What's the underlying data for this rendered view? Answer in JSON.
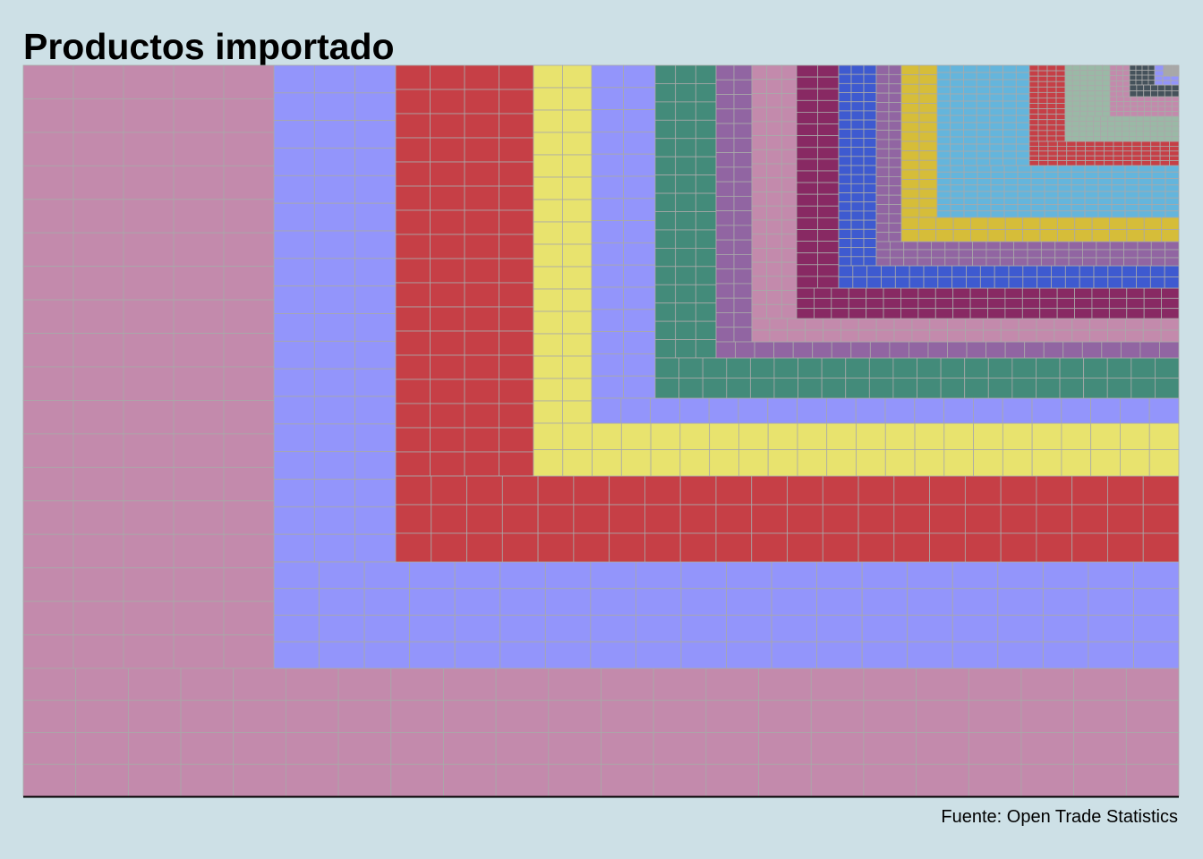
{
  "chart_data": {
    "type": "treemap",
    "title": "Productos importado",
    "caption": "Fuente: Open Trade Statistics",
    "tile_border_color": "#a9a9a9",
    "baseline_color": "#000000",
    "background": "#cde0e6",
    "groups": [
      {
        "color": "#c38aac",
        "tile_cols": 22,
        "tile_rows": 22
      },
      {
        "color": "#9395fb",
        "tile_cols": 20,
        "tile_rows": 22
      },
      {
        "color": "#c63f46",
        "tile_cols": 22,
        "tile_rows": 20
      },
      {
        "color": "#e8e36e",
        "tile_cols": 22,
        "tile_rows": 18
      },
      {
        "color": "#9395fb",
        "tile_cols": 20,
        "tile_rows": 16
      },
      {
        "color": "#438b7a",
        "tile_cols": 22,
        "tile_rows": 18
      },
      {
        "color": "#9165a2",
        "tile_cols": 24,
        "tile_rows": 20
      },
      {
        "color": "#c38aac",
        "tile_cols": 24,
        "tile_rows": 20
      },
      {
        "color": "#882963",
        "tile_cols": 22,
        "tile_rows": 22
      },
      {
        "color": "#3e5ad0",
        "tile_cols": 24,
        "tile_rows": 24
      },
      {
        "color": "#9165a2",
        "tile_cols": 22,
        "tile_rows": 22
      },
      {
        "color": "#d6bd39",
        "tile_cols": 16,
        "tile_rows": 18
      },
      {
        "color": "#64b5dc",
        "tile_cols": 18,
        "tile_rows": 22
      },
      {
        "color": "#c63f46",
        "tile_cols": 16,
        "tile_rows": 20
      },
      {
        "color": "#9ab9a6",
        "tile_cols": 16,
        "tile_rows": 18
      },
      {
        "color": "#c38aac",
        "tile_cols": 14,
        "tile_rows": 18
      },
      {
        "color": "#45525b",
        "tile_cols": 16,
        "tile_rows": 18
      },
      {
        "color": "#9395fb",
        "tile_cols": 12,
        "tile_rows": 14
      },
      {
        "color": "#a7a9a9",
        "tile_cols": 12,
        "tile_rows": 12
      }
    ]
  }
}
